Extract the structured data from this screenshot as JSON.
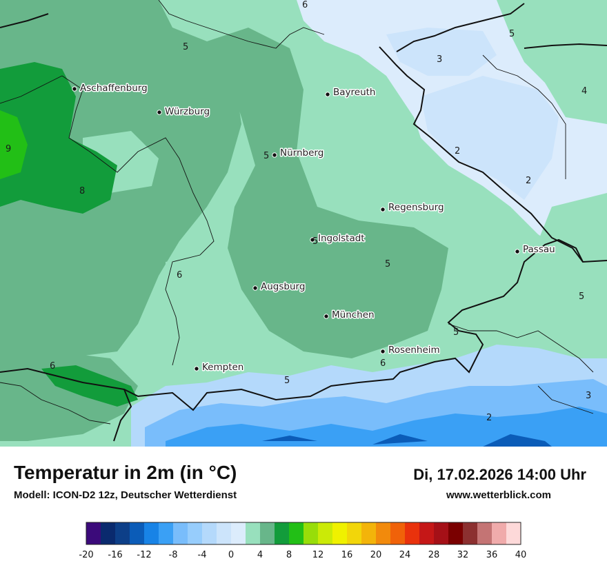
{
  "map": {
    "cities": [
      {
        "name": "Aschaffenburg"
      },
      {
        "name": "Würzburg"
      },
      {
        "name": "Bayreuth"
      },
      {
        "name": "Nürnberg"
      },
      {
        "name": "Regensburg"
      },
      {
        "name": "Ingolstadt"
      },
      {
        "name": "Passau"
      },
      {
        "name": "Augsburg"
      },
      {
        "name": "München"
      },
      {
        "name": "Rosenheim"
      },
      {
        "name": "Kempten"
      }
    ],
    "isolines": [
      "6",
      "5",
      "5",
      "3",
      "4",
      "9",
      "8",
      "2",
      "2",
      "5",
      "5",
      "6",
      "5",
      "5",
      "6",
      "5",
      "6",
      "5",
      "3",
      "2"
    ]
  },
  "footer": {
    "title": "Temperatur in 2m (in °C)",
    "subtitle": "Modell: ICON-D2 12z, Deutscher Wetterdienst",
    "datetime": "Di, 17.02.2026 14:00 Uhr",
    "website": "www.wetterblick.com"
  },
  "legend": {
    "ticks": [
      "-20",
      "-16",
      "-12",
      "-8",
      "-4",
      "0",
      "4",
      "8",
      "12",
      "16",
      "20",
      "24",
      "28",
      "32",
      "36",
      "40"
    ],
    "colors": [
      "#3b0a7a",
      "#0a2a6e",
      "#0d3f88",
      "#0b5cb8",
      "#1883e6",
      "#3aa0f5",
      "#79bdfb",
      "#97cdfc",
      "#b4d9fb",
      "#cce4fb",
      "#dcecfc",
      "#98e0bd",
      "#68b68a",
      "#129c3b",
      "#22bf16",
      "#98dd09",
      "#cbea07",
      "#f0f100",
      "#f2d60a",
      "#f3b40a",
      "#f28a0c",
      "#f06209",
      "#e9320c",
      "#c51717",
      "#a51017",
      "#7a0000",
      "#8c3030",
      "#c47474",
      "#f0abab",
      "#fdd9d9"
    ]
  }
}
